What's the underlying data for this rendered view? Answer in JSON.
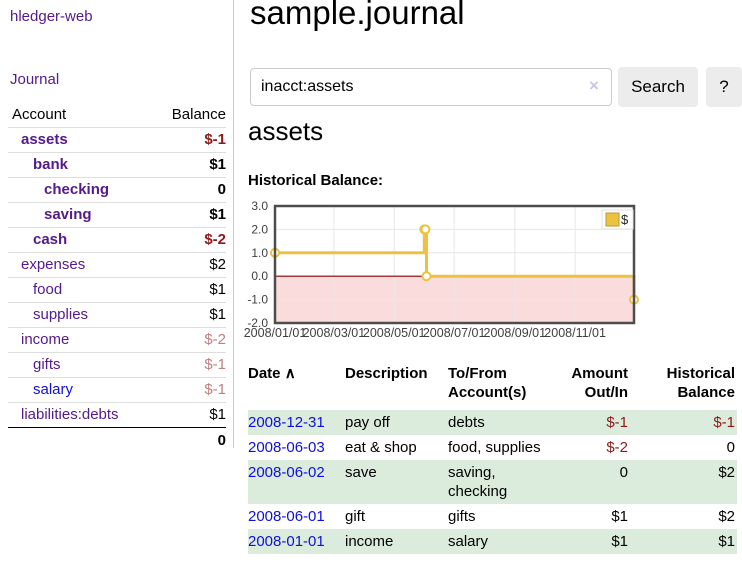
{
  "brand": {
    "label": "hledger-web"
  },
  "nav": {
    "journal": "Journal"
  },
  "sidebar": {
    "columns": {
      "account": "Account",
      "balance": "Balance"
    },
    "accounts": [
      {
        "name": "assets",
        "balance": "$-1",
        "depth": 1,
        "bold": true,
        "color": "purple"
      },
      {
        "name": "bank",
        "balance": "$1",
        "depth": 2,
        "bold": true,
        "color": "purple"
      },
      {
        "name": "checking",
        "balance": "0",
        "depth": 3,
        "bold": true,
        "color": "purple"
      },
      {
        "name": "saving",
        "balance": "$1",
        "depth": 3,
        "bold": true,
        "color": "purple"
      },
      {
        "name": "cash",
        "balance": "$-2",
        "depth": 2,
        "bold": true,
        "color": "purple"
      },
      {
        "name": "expenses",
        "balance": "$2",
        "depth": 1,
        "bold": false,
        "color": "purple"
      },
      {
        "name": "food",
        "balance": "$1",
        "depth": 2,
        "bold": false,
        "color": "purple"
      },
      {
        "name": "supplies",
        "balance": "$1",
        "depth": 2,
        "bold": false,
        "color": "purple"
      },
      {
        "name": "income",
        "balance": "$-2",
        "depth": 1,
        "bold": false,
        "color": "purple"
      },
      {
        "name": "gifts",
        "balance": "$-1",
        "depth": 2,
        "bold": false,
        "color": "purple"
      },
      {
        "name": "salary",
        "balance": "$-1",
        "depth": 2,
        "bold": false,
        "color": "blue"
      },
      {
        "name": "liabilities:debts",
        "balance": "$1",
        "depth": 1,
        "bold": false,
        "color": "purple"
      }
    ],
    "total": "0"
  },
  "main": {
    "title": "sample.journal",
    "account_heading": "assets",
    "chart_title": "Historical Balance:"
  },
  "search": {
    "value": "inacct:assets",
    "clear_icon": "×",
    "search_button": "Search",
    "help_button": "?"
  },
  "chart_data": {
    "type": "line",
    "step": true,
    "title": "Historical Balance:",
    "legend": {
      "label": "$",
      "position": "top-right"
    },
    "ylim": [
      -2,
      3
    ],
    "yticks": [
      {
        "v": 3,
        "label": "3.0"
      },
      {
        "v": 2,
        "label": "2.0"
      },
      {
        "v": 1,
        "label": "1.0"
      },
      {
        "v": 0,
        "label": "0.0"
      },
      {
        "v": -1,
        "label": "-1.0"
      },
      {
        "v": -2,
        "label": "-2.0"
      }
    ],
    "xticks": [
      {
        "f": 0.0,
        "label": "2008/01/01"
      },
      {
        "f": 0.164,
        "label": "2008/03/01"
      },
      {
        "f": 0.332,
        "label": "2008/05/01"
      },
      {
        "f": 0.499,
        "label": "2008/07/01"
      },
      {
        "f": 0.668,
        "label": "2008/09/01"
      },
      {
        "f": 0.836,
        "label": "2008/11/01"
      }
    ],
    "series": [
      {
        "name": "$",
        "points": [
          {
            "date": "2008-01-01",
            "value": 1,
            "f": 0.0
          },
          {
            "date": "2008-06-01",
            "value": 2,
            "f": 0.416
          },
          {
            "date": "2008-06-02",
            "value": 2,
            "f": 0.419
          },
          {
            "date": "2008-06-03",
            "value": 0,
            "f": 0.422
          },
          {
            "date": "2008-12-31",
            "value": -1,
            "f": 1.0
          }
        ]
      }
    ],
    "colors": {
      "series": "#edc240",
      "marker_fill": "#ffffff",
      "negative_fill": "#fbdcdc",
      "zero_line": "#8b0000",
      "grid": "#e7e7e7",
      "border": "#4d4d4d",
      "tick_text": "#3f3f3f"
    }
  },
  "register": {
    "columns": {
      "date": "Date",
      "sort_icon": "∧",
      "description": "Description",
      "accounts": "To/From Account(s)",
      "amount": "Amount Out/In",
      "balance": "Historical Balance"
    },
    "rows": [
      {
        "date": "2008-12-31",
        "description": "pay off",
        "accounts": "debts",
        "amount": "$-1",
        "balance": "$-1",
        "shaded": true
      },
      {
        "date": "2008-06-03",
        "description": "eat & shop",
        "accounts": "food, supplies",
        "amount": "$-2",
        "balance": "0",
        "shaded": false
      },
      {
        "date": "2008-06-02",
        "description": "save",
        "accounts": "saving, checking",
        "amount": "0",
        "balance": "$2",
        "shaded": true
      },
      {
        "date": "2008-06-01",
        "description": "gift",
        "accounts": "gifts",
        "amount": "$1",
        "balance": "$2",
        "shaded": false
      },
      {
        "date": "2008-01-01",
        "description": "income",
        "accounts": "salary",
        "amount": "$1",
        "balance": "$1",
        "shaded": true
      }
    ]
  }
}
